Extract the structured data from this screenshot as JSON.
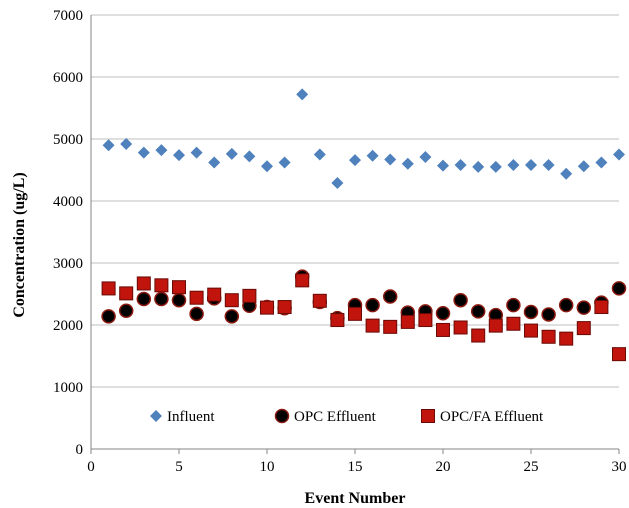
{
  "chart_data": {
    "type": "scatter",
    "title": "",
    "xlabel": "Event Number",
    "ylabel": "Concentration (ug/L)",
    "xlim": [
      0,
      30
    ],
    "ylim": [
      0,
      7000
    ],
    "xticks": [
      0,
      5,
      10,
      15,
      20,
      25,
      30
    ],
    "yticks": [
      0,
      1000,
      2000,
      3000,
      4000,
      5000,
      6000,
      7000
    ],
    "grid": "horizontal",
    "legend_position": "bottom-inside",
    "series": [
      {
        "name": "Influent",
        "marker": "diamond",
        "color": "#4f81bd",
        "x": [
          1,
          2,
          3,
          4,
          5,
          6,
          7,
          8,
          9,
          10,
          11,
          12,
          13,
          14,
          15,
          16,
          17,
          18,
          19,
          20,
          21,
          22,
          23,
          24,
          25,
          26,
          27,
          28,
          29,
          30
        ],
        "y": [
          4900,
          4920,
          4780,
          4820,
          4740,
          4780,
          4620,
          4760,
          4720,
          4560,
          4620,
          5720,
          4750,
          4290,
          4660,
          4730,
          4670,
          4600,
          4710,
          4570,
          4580,
          4550,
          4550,
          4580,
          4580,
          4580,
          4440,
          4560,
          4620,
          4750
        ]
      },
      {
        "name": "OPC Effluent",
        "marker": "circle",
        "color": "#000000",
        "x": [
          1,
          2,
          3,
          4,
          5,
          6,
          7,
          8,
          9,
          10,
          11,
          12,
          13,
          14,
          15,
          16,
          17,
          18,
          19,
          20,
          21,
          22,
          23,
          24,
          25,
          26,
          27,
          28,
          29,
          30
        ],
        "y": [
          2140,
          2230,
          2420,
          2420,
          2400,
          2180,
          2430,
          2140,
          2310,
          2290,
          2270,
          2780,
          2370,
          2110,
          2320,
          2320,
          2460,
          2200,
          2220,
          2190,
          2400,
          2220,
          2160,
          2320,
          2210,
          2170,
          2320,
          2280,
          2360,
          2590
        ]
      },
      {
        "name": "OPC/FA Effluent",
        "marker": "square",
        "color": "#c0140c",
        "x": [
          1,
          2,
          3,
          4,
          5,
          6,
          7,
          8,
          9,
          10,
          11,
          12,
          13,
          14,
          15,
          16,
          17,
          18,
          19,
          20,
          21,
          22,
          23,
          24,
          25,
          26,
          27,
          28,
          29,
          30
        ],
        "y": [
          2590,
          2510,
          2670,
          2640,
          2610,
          2440,
          2490,
          2400,
          2470,
          2280,
          2290,
          2720,
          2390,
          2080,
          2180,
          1990,
          1970,
          2050,
          2080,
          1920,
          1960,
          1830,
          1990,
          2020,
          1910,
          1810,
          1780,
          1950,
          2290,
          1530
        ]
      }
    ]
  }
}
